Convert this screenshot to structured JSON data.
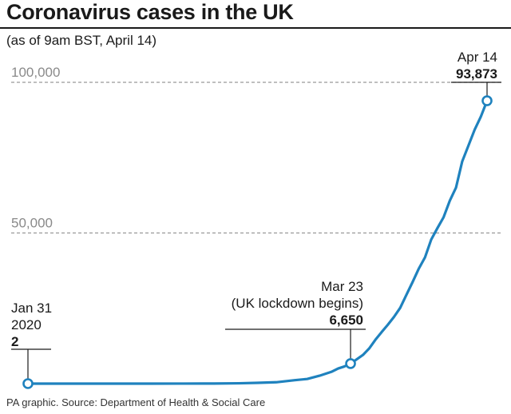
{
  "header": {
    "title": "Coronavirus cases in the UK",
    "subtitle": "(as of 9am BST, April 14)"
  },
  "footer": {
    "source": "PA graphic. Source: Department of Health & Social Care"
  },
  "colors": {
    "line": "#1f82be",
    "text": "#1a1a1a",
    "gridline": "#999999",
    "tick_label": "#8a8a8a"
  },
  "chart_data": {
    "type": "line",
    "title": "Coronavirus cases in the UK",
    "subtitle": "(as of 9am BST, April 14)",
    "xlabel": "",
    "ylabel": "",
    "ylim": [
      0,
      100000
    ],
    "yticks": [
      {
        "value": 50000,
        "label": "50,000"
      },
      {
        "value": 100000,
        "label": "100,000"
      }
    ],
    "grid": "dashed horizontal",
    "series": [
      {
        "x": [
          "2020-01-31",
          "2020-02-05",
          "2020-02-10",
          "2020-02-15",
          "2020-02-20",
          "2020-02-25",
          "2020-03-01",
          "2020-03-05",
          "2020-03-08",
          "2020-03-11",
          "2020-03-14",
          "2020-03-16",
          "2020-03-18",
          "2020-03-20",
          "2020-03-21",
          "2020-03-22",
          "2020-03-23",
          "2020-03-24",
          "2020-03-25",
          "2020-03-26",
          "2020-03-27",
          "2020-03-28",
          "2020-03-29",
          "2020-03-30",
          "2020-03-31",
          "2020-04-01",
          "2020-04-02",
          "2020-04-03",
          "2020-04-04",
          "2020-04-05",
          "2020-04-06",
          "2020-04-07",
          "2020-04-08",
          "2020-04-09",
          "2020-04-10",
          "2020-04-11",
          "2020-04-12",
          "2020-04-13",
          "2020-04-14"
        ],
        "y": [
          2,
          2,
          8,
          9,
          9,
          13,
          36,
          116,
          273,
          456,
          1140,
          1543,
          2626,
          3983,
          5018,
          5683,
          6650,
          8077,
          9529,
          11658,
          14543,
          17089,
          19522,
          22141,
          25150,
          29474,
          33718,
          38168,
          41903,
          47806,
          51608,
          55242,
          60733,
          65077,
          73758,
          78991,
          84279,
          88621,
          93873
        ]
      }
    ],
    "annotations": [
      {
        "x": "2020-01-31",
        "lines": [
          "Jan 31",
          "2020"
        ],
        "value_label": "2"
      },
      {
        "x": "2020-03-23",
        "lines": [
          "Mar 23",
          "(UK lockdown begins)"
        ],
        "value_label": "6,650"
      },
      {
        "x": "2020-04-14",
        "lines": [
          "Apr 14"
        ],
        "value_label": "93,873"
      }
    ]
  }
}
